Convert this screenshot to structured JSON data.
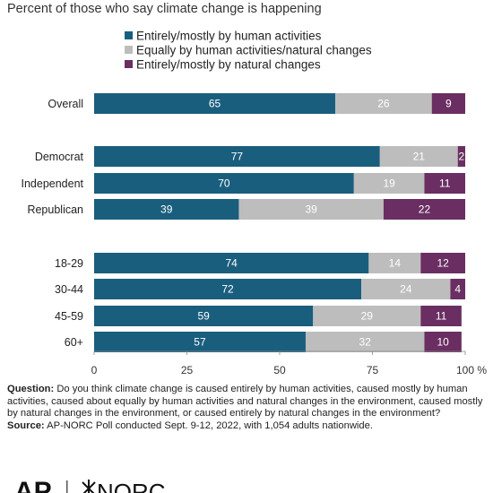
{
  "subtitle": "Percent of those who say climate change is happening",
  "footnote": {
    "question_label": "Question:",
    "question_text": "Do you think climate change is caused entirely by human activities, caused mostly by human activities, caused about equally by human activities and natural changes in the environment, caused mostly by natural changes in the environment, or caused entirely by natural changes in the environment?",
    "source_label": "Source:",
    "source_text": "AP-NORC Poll conducted Sept. 9-12, 2022, with 1,054 adults nationwide."
  },
  "logos": {
    "ap": "AP",
    "norc": "NORC"
  },
  "colors": {
    "human": "#1a5e7e",
    "equal": "#bdbdbd",
    "natural": "#6a2e62",
    "axis": "#888888"
  },
  "chart_data": {
    "type": "bar",
    "orientation": "horizontal",
    "stacked": true,
    "categories": [
      "Overall",
      "Democrat",
      "Independent",
      "Republican",
      "18-29",
      "30-44",
      "45-59",
      "60+"
    ],
    "groups": [
      [
        "Overall"
      ],
      [
        "Democrat",
        "Independent",
        "Republican"
      ],
      [
        "18-29",
        "30-44",
        "45-59",
        "60+"
      ]
    ],
    "series": [
      {
        "name": "Entirely/mostly by human activities",
        "values": [
          65,
          77,
          70,
          39,
          74,
          72,
          59,
          57
        ]
      },
      {
        "name": "Equally by human activities/natural changes",
        "values": [
          26,
          21,
          19,
          39,
          14,
          24,
          29,
          32
        ]
      },
      {
        "name": "Entirely/mostly by natural changes",
        "values": [
          9,
          2,
          11,
          22,
          12,
          4,
          11,
          10
        ]
      }
    ],
    "xlim": [
      0,
      100
    ],
    "xticks": [
      0,
      25,
      50,
      75,
      100
    ],
    "xtick_labels": [
      "0",
      "25",
      "50",
      "75",
      "100 %"
    ],
    "legend_position": "top",
    "grid": false
  }
}
